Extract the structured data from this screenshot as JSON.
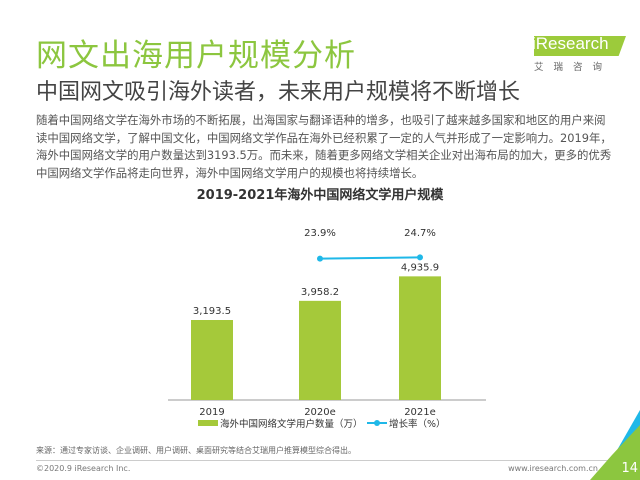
{
  "header": {
    "title": "网文出海用户规模分析",
    "subtitle": "中国网文吸引海外读者，未来用户规模将不断增长"
  },
  "body_text": "随着中国网络文学在海外市场的不断拓展，出海国家与翻译语种的增多，也吸引了越来越多国家和地区的用户来阅读中国网络文学，了解中国文化，中国网络文学作品在海外已经积累了一定的人气并形成了一定影响力。2019年，海外中国网络文学的用户数量达到3193.5万。而未来，随着更多网络文学相关企业对出海布局的加大，更多的优秀中国网络文学作品将走向世界，海外中国网络文学用户的规模也将持续增长。",
  "logo": {
    "text": "iResearch",
    "cn": "艾瑞咨询"
  },
  "chart_data": {
    "type": "bar",
    "title": "2019-2021年海外中国网络文学用户规模",
    "categories": [
      "2019",
      "2020e",
      "2021e"
    ],
    "series": [
      {
        "name": "海外中国网络文学用户数量（万）",
        "type": "bar",
        "values": [
          3193.5,
          3958.2,
          4935.9
        ],
        "labels": [
          "3,193.5",
          "3,958.2",
          "4,935.9"
        ],
        "color": "#a5c93a"
      },
      {
        "name": "增长率（%）",
        "type": "line",
        "values": [
          null,
          23.9,
          24.7
        ],
        "labels": [
          "",
          "23.9%",
          "24.7%"
        ],
        "color": "#1fb8e8"
      }
    ],
    "legend": "bottom"
  },
  "footer": {
    "source": "来源：通过专家访谈、企业调研、用户调研、桌面研究等结合艾瑞用户推算模型综合得出。",
    "copyright": "©2020.9 iResearch Inc.",
    "url": "www.iresearch.com.cn",
    "page": "14"
  },
  "colors": {
    "accent": "#8cc63f",
    "line": "#1fb8e8",
    "corner_blue": "#1fb8e8"
  }
}
